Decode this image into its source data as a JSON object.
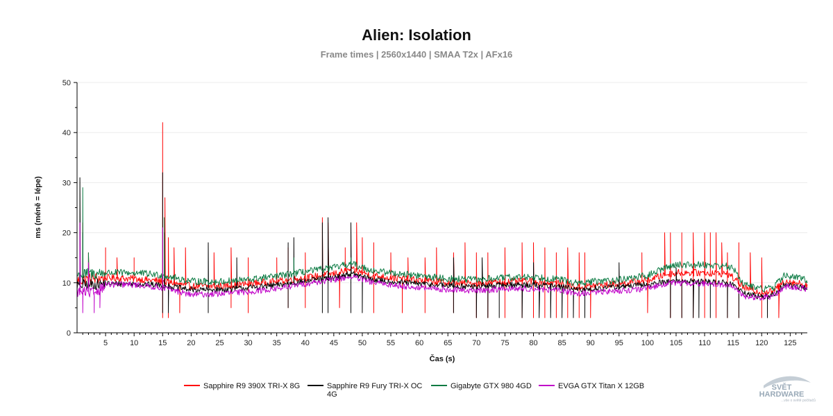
{
  "chart_data": {
    "type": "line",
    "title": "Alien: Isolation",
    "subtitle": "Frame times | 2560x1440 | SMAA T2x | AFx16",
    "xlabel": "Čas (s)",
    "ylabel": "ms (méně = lépe)",
    "xlim": [
      0,
      128
    ],
    "ylim": [
      0,
      50
    ],
    "x_ticks": [
      5,
      10,
      15,
      20,
      25,
      30,
      35,
      40,
      45,
      50,
      55,
      60,
      65,
      70,
      75,
      80,
      85,
      90,
      95,
      100,
      105,
      110,
      115,
      120,
      125
    ],
    "y_ticks": [
      0,
      10,
      20,
      30,
      40,
      50
    ],
    "grid": true,
    "legend_position": "bottom",
    "series": [
      {
        "name": "Sapphire R9 390X TRI-X 8G",
        "color": "#ff0000",
        "baseline": [
          [
            0,
            10.5
          ],
          [
            5,
            11
          ],
          [
            10,
            10.8
          ],
          [
            15,
            10.3
          ],
          [
            20,
            9.3
          ],
          [
            25,
            9.3
          ],
          [
            30,
            9.8
          ],
          [
            35,
            10.3
          ],
          [
            40,
            11
          ],
          [
            45,
            11.8
          ],
          [
            48,
            12.6
          ],
          [
            52,
            11.4
          ],
          [
            55,
            11
          ],
          [
            60,
            10.5
          ],
          [
            65,
            10
          ],
          [
            70,
            9.8
          ],
          [
            75,
            10.2
          ],
          [
            80,
            10.3
          ],
          [
            85,
            9.8
          ],
          [
            88,
            9
          ],
          [
            90,
            9.4
          ],
          [
            95,
            9.8
          ],
          [
            100,
            10.5
          ],
          [
            103,
            11.6
          ],
          [
            105,
            12
          ],
          [
            110,
            12
          ],
          [
            114,
            11.8
          ],
          [
            115,
            11
          ],
          [
            117,
            9
          ],
          [
            120,
            8
          ],
          [
            122,
            8.3
          ],
          [
            124,
            10.4
          ],
          [
            128,
            9.6
          ]
        ],
        "noise": 0.7,
        "spikes": [
          [
            1,
            22
          ],
          [
            2,
            16
          ],
          [
            5,
            17
          ],
          [
            7,
            15
          ],
          [
            10,
            15
          ],
          [
            15,
            42
          ],
          [
            15.4,
            27
          ],
          [
            16,
            19
          ],
          [
            17,
            17
          ],
          [
            19,
            17
          ],
          [
            24,
            16
          ],
          [
            27,
            17
          ],
          [
            30,
            15
          ],
          [
            35,
            15
          ],
          [
            37,
            17
          ],
          [
            40,
            16
          ],
          [
            43,
            23
          ],
          [
            44,
            22
          ],
          [
            47,
            17
          ],
          [
            49,
            22
          ],
          [
            50,
            19
          ],
          [
            52,
            18
          ],
          [
            55,
            16
          ],
          [
            58,
            15
          ],
          [
            61,
            15
          ],
          [
            63,
            17
          ],
          [
            66,
            16
          ],
          [
            68,
            18
          ],
          [
            70,
            16
          ],
          [
            72,
            16
          ],
          [
            75,
            17
          ],
          [
            78,
            18
          ],
          [
            80,
            18
          ],
          [
            82,
            17
          ],
          [
            84,
            16
          ],
          [
            86,
            17
          ],
          [
            88,
            16
          ],
          [
            89,
            16
          ],
          [
            99,
            16
          ],
          [
            103,
            20
          ],
          [
            104,
            20
          ],
          [
            106,
            20
          ],
          [
            108,
            20
          ],
          [
            110,
            20
          ],
          [
            111,
            20
          ],
          [
            112,
            20
          ],
          [
            113,
            18
          ],
          [
            114,
            16
          ],
          [
            116,
            18
          ],
          [
            118,
            16
          ],
          [
            120,
            15
          ]
        ],
        "dips": [
          [
            15,
            3
          ],
          [
            16,
            3
          ],
          [
            18,
            4
          ],
          [
            27,
            5
          ],
          [
            30,
            4
          ],
          [
            37,
            5
          ],
          [
            40,
            5
          ],
          [
            46,
            5
          ],
          [
            52,
            4
          ],
          [
            57,
            4
          ],
          [
            61,
            4
          ],
          [
            66,
            4
          ],
          [
            70,
            3
          ],
          [
            72,
            3
          ],
          [
            75,
            3
          ],
          [
            78,
            3
          ],
          [
            80,
            3
          ],
          [
            82,
            3
          ],
          [
            84,
            3
          ],
          [
            86,
            3
          ],
          [
            88,
            3
          ],
          [
            90,
            3
          ],
          [
            100,
            4
          ],
          [
            104,
            3
          ],
          [
            106,
            3
          ],
          [
            108,
            3
          ],
          [
            110,
            3
          ],
          [
            112,
            3
          ],
          [
            114,
            3
          ],
          [
            116,
            3
          ],
          [
            120,
            3
          ],
          [
            123,
            3
          ]
        ]
      },
      {
        "name": "Sapphire R9 Fury TRI-X OC 4G",
        "color": "#000000",
        "baseline": [
          [
            0,
            9.5
          ],
          [
            5,
            9.8
          ],
          [
            10,
            9.8
          ],
          [
            15,
            9.5
          ],
          [
            20,
            8.6
          ],
          [
            25,
            8.6
          ],
          [
            30,
            9
          ],
          [
            35,
            9.5
          ],
          [
            40,
            10.3
          ],
          [
            45,
            11
          ],
          [
            48,
            11.8
          ],
          [
            52,
            10.6
          ],
          [
            55,
            10.2
          ],
          [
            60,
            9.8
          ],
          [
            65,
            9.4
          ],
          [
            70,
            9.2
          ],
          [
            75,
            9.6
          ],
          [
            80,
            9.6
          ],
          [
            85,
            9.2
          ],
          [
            88,
            8.5
          ],
          [
            90,
            8.8
          ],
          [
            95,
            9.2
          ],
          [
            100,
            9.6
          ],
          [
            103,
            10.2
          ],
          [
            105,
            10.4
          ],
          [
            110,
            10.2
          ],
          [
            114,
            10
          ],
          [
            115,
            9.6
          ],
          [
            117,
            7.8
          ],
          [
            120,
            7.2
          ],
          [
            122,
            7.5
          ],
          [
            124,
            9.6
          ],
          [
            128,
            9
          ]
        ],
        "noise": 0.6,
        "spikes": [
          [
            0.5,
            31
          ],
          [
            1,
            20
          ],
          [
            15,
            32
          ],
          [
            15.3,
            20
          ],
          [
            23,
            18
          ],
          [
            28,
            15
          ],
          [
            37,
            18
          ],
          [
            38,
            19
          ],
          [
            43,
            22
          ],
          [
            44,
            23
          ],
          [
            48,
            22
          ],
          [
            66,
            15
          ],
          [
            71,
            15
          ],
          [
            80,
            14
          ],
          [
            95,
            14
          ],
          [
            105,
            13
          ]
        ],
        "dips": [
          [
            15,
            4
          ],
          [
            16,
            4
          ],
          [
            23,
            4
          ],
          [
            37,
            5
          ],
          [
            43,
            4
          ],
          [
            44,
            4
          ],
          [
            48,
            4
          ],
          [
            50,
            4
          ],
          [
            66,
            4
          ],
          [
            70,
            3
          ],
          [
            72,
            3
          ],
          [
            74,
            3
          ],
          [
            78,
            3
          ],
          [
            81,
            3
          ],
          [
            83,
            3
          ],
          [
            85,
            3
          ],
          [
            87,
            3
          ],
          [
            89,
            3
          ],
          [
            104,
            3
          ],
          [
            106,
            3
          ],
          [
            108,
            3
          ],
          [
            109,
            3
          ],
          [
            111,
            3
          ],
          [
            114,
            3
          ],
          [
            116,
            3
          ],
          [
            121,
            3
          ]
        ]
      },
      {
        "name": "Gigabyte GTX 980 4GD",
        "color": "#0a7a42",
        "baseline": [
          [
            0,
            11.5
          ],
          [
            5,
            12
          ],
          [
            10,
            12
          ],
          [
            15,
            11.5
          ],
          [
            20,
            10.3
          ],
          [
            25,
            10.2
          ],
          [
            30,
            10.6
          ],
          [
            35,
            11.3
          ],
          [
            40,
            12.2
          ],
          [
            45,
            13
          ],
          [
            48,
            13.8
          ],
          [
            52,
            12.4
          ],
          [
            55,
            12
          ],
          [
            60,
            11.4
          ],
          [
            65,
            10.8
          ],
          [
            70,
            10.6
          ],
          [
            75,
            11
          ],
          [
            80,
            11.2
          ],
          [
            85,
            10.6
          ],
          [
            88,
            9.8
          ],
          [
            90,
            10.2
          ],
          [
            95,
            10.6
          ],
          [
            100,
            11.4
          ],
          [
            103,
            13
          ],
          [
            105,
            13.6
          ],
          [
            110,
            13.6
          ],
          [
            114,
            13.3
          ],
          [
            115,
            12.8
          ],
          [
            117,
            9.6
          ],
          [
            120,
            8.8
          ],
          [
            122,
            9
          ],
          [
            124,
            11.5
          ],
          [
            128,
            10.6
          ]
        ],
        "noise": 0.7,
        "spikes": [
          [
            1,
            29
          ],
          [
            2,
            16
          ],
          [
            15.3,
            23
          ],
          [
            38,
            15
          ],
          [
            48,
            15
          ]
        ],
        "dips": []
      },
      {
        "name": "EVGA GTX Titan X 12GB",
        "color": "#c000c8",
        "baseline": [
          [
            0,
            8.2
          ],
          [
            3,
            8
          ],
          [
            5,
            9.6
          ],
          [
            10,
            9.6
          ],
          [
            15,
            9
          ],
          [
            20,
            7.6
          ],
          [
            25,
            7.8
          ],
          [
            30,
            8.2
          ],
          [
            35,
            8.8
          ],
          [
            40,
            9.8
          ],
          [
            45,
            10.6
          ],
          [
            48,
            11.2
          ],
          [
            52,
            10
          ],
          [
            55,
            9.6
          ],
          [
            60,
            9
          ],
          [
            65,
            8.6
          ],
          [
            70,
            8.4
          ],
          [
            75,
            8.8
          ],
          [
            80,
            8.8
          ],
          [
            85,
            8.4
          ],
          [
            88,
            7.8
          ],
          [
            90,
            8
          ],
          [
            95,
            8.4
          ],
          [
            100,
            8.8
          ],
          [
            103,
            9.8
          ],
          [
            105,
            10
          ],
          [
            110,
            9.8
          ],
          [
            114,
            9.6
          ],
          [
            115,
            9.2
          ],
          [
            117,
            7.2
          ],
          [
            120,
            7
          ],
          [
            122,
            7.3
          ],
          [
            124,
            9.2
          ],
          [
            128,
            8.8
          ]
        ],
        "noise": 0.6,
        "spikes": [
          [
            0.5,
            22
          ],
          [
            15,
            21
          ],
          [
            2,
            14
          ]
        ],
        "dips": [
          [
            1,
            4
          ],
          [
            3,
            4
          ],
          [
            4,
            5
          ]
        ]
      }
    ]
  },
  "logo": {
    "line1": "SVĚT",
    "line2": "HARDWARE",
    "tagline": "...vše o světě počítačů"
  }
}
